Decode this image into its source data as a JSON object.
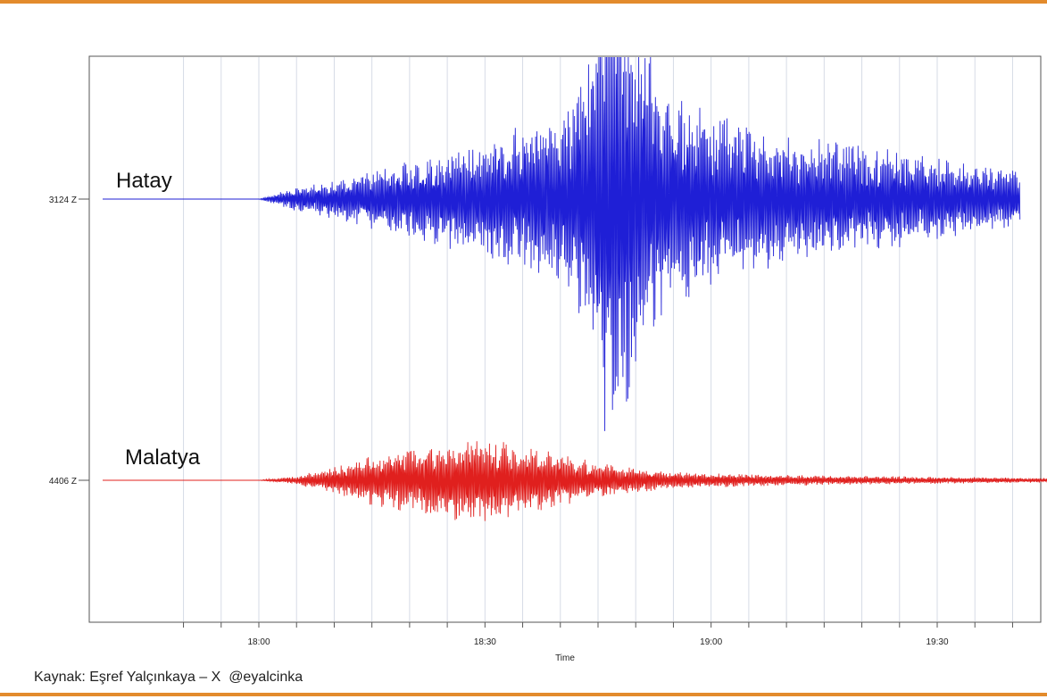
{
  "chart_data": {
    "type": "line",
    "xlabel": "Time",
    "x_ticks": [
      "18:00",
      "18:30",
      "19:00",
      "19:30"
    ],
    "x_range": [
      "17:50",
      "19:52"
    ],
    "grid": true,
    "series": [
      {
        "name": "Hatay",
        "channel": "3124 Z",
        "color": "#1f1fd6",
        "envelope": {
          "times": [
            "18:00",
            "18:05",
            "18:10",
            "18:15",
            "18:20",
            "18:25",
            "18:30",
            "18:35",
            "18:40",
            "18:44",
            "18:46",
            "18:48",
            "18:50",
            "18:52",
            "18:55",
            "19:00",
            "19:05",
            "19:10",
            "19:15",
            "19:20",
            "19:25",
            "19:30",
            "19:35",
            "19:40",
            "19:41"
          ],
          "amplitude": [
            0.0,
            0.05,
            0.08,
            0.12,
            0.15,
            0.2,
            0.24,
            0.3,
            0.35,
            0.6,
            1.0,
            1.0,
            0.85,
            0.6,
            0.45,
            0.35,
            0.3,
            0.27,
            0.24,
            0.22,
            0.2,
            0.17,
            0.14,
            0.12,
            0.1
          ]
        }
      },
      {
        "name": "Malatya",
        "channel": "4406 Z",
        "color": "#e0201e",
        "envelope": {
          "times": [
            "18:00",
            "18:05",
            "18:10",
            "18:15",
            "18:20",
            "18:25",
            "18:30",
            "18:35",
            "18:40",
            "18:45",
            "18:50",
            "18:55",
            "19:00",
            "19:10",
            "19:20",
            "19:30",
            "19:40",
            "19:52"
          ],
          "amplitude": [
            0.0,
            0.05,
            0.15,
            0.28,
            0.38,
            0.45,
            0.48,
            0.4,
            0.3,
            0.2,
            0.14,
            0.1,
            0.08,
            0.06,
            0.05,
            0.04,
            0.03,
            0.02
          ]
        }
      }
    ]
  },
  "footer": {
    "source": "Kaynak: Eşref Yalçınkaya – X  @eyalcinka"
  }
}
